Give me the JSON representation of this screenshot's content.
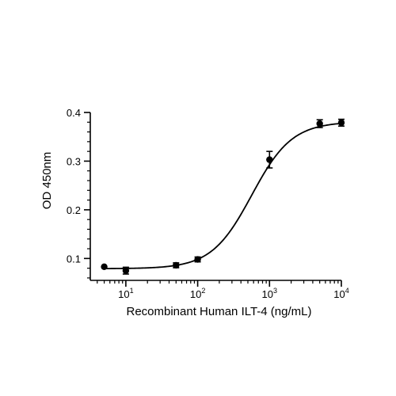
{
  "chart_data": {
    "type": "scatter",
    "title": "",
    "xlabel": "Recombinant Human ILT-4 (ng/mL)",
    "ylabel": "OD 450nm",
    "x_scale": "log10",
    "xlim": [
      3.2,
      10000
    ],
    "ylim": [
      0.055,
      0.4
    ],
    "x_ticks": [
      {
        "value": 10,
        "base": "10",
        "exp": "1"
      },
      {
        "value": 100,
        "base": "10",
        "exp": "2"
      },
      {
        "value": 1000,
        "base": "10",
        "exp": "3"
      },
      {
        "value": 10000,
        "base": "10",
        "exp": "4"
      }
    ],
    "y_ticks": [
      {
        "value": 0.1,
        "label": "0.1"
      },
      {
        "value": 0.2,
        "label": "0.2"
      },
      {
        "value": 0.3,
        "label": "0.3"
      },
      {
        "value": 0.4,
        "label": "0.4"
      }
    ],
    "grid": false,
    "legend": false,
    "series": [
      {
        "points": [
          {
            "x": 5,
            "y": 0.083,
            "err": 0
          },
          {
            "x": 10,
            "y": 0.075,
            "err": 0.007
          },
          {
            "x": 50,
            "y": 0.086,
            "err": 0.005
          },
          {
            "x": 100,
            "y": 0.098,
            "err": 0.005
          },
          {
            "x": 1000,
            "y": 0.303,
            "err": 0.017
          },
          {
            "x": 5000,
            "y": 0.377,
            "err": 0.008
          },
          {
            "x": 10000,
            "y": 0.379,
            "err": 0.007
          }
        ]
      }
    ],
    "fit_curve": {
      "model": "four-parameter logistic",
      "bottom": 0.079,
      "top": 0.381,
      "ec50": 565,
      "hill": 1.55
    }
  }
}
